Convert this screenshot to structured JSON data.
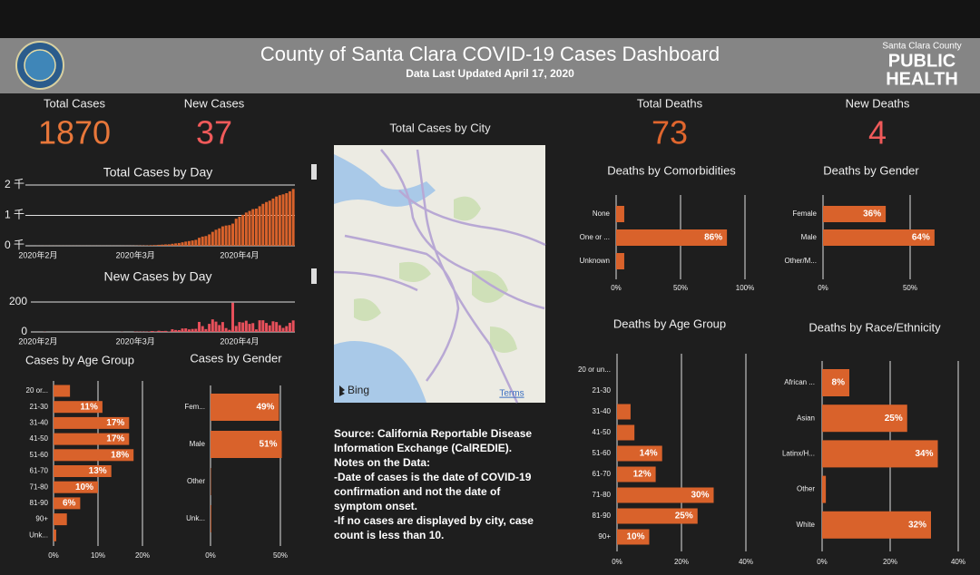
{
  "header": {
    "title": "County of Santa Clara COVID-19 Cases Dashboard",
    "subtitle": "Data Last Updated April 17, 2020",
    "logo_top": "Santa Clara County",
    "logo_line1": "PUBLIC",
    "logo_line2": "HEALTH"
  },
  "kpis": [
    {
      "label": "Total Cases",
      "value": 1870,
      "color": "#e8773a"
    },
    {
      "label": "New Cases",
      "value": 37,
      "color": "#f05a5a"
    },
    {
      "label": "Total Deaths",
      "value": 73,
      "color": "#e0662e"
    },
    {
      "label": "New Deaths",
      "value": 4,
      "color": "#f05a5a"
    }
  ],
  "map": {
    "title": "Total Cases by City",
    "attribution": "Bing",
    "terms": "Terms"
  },
  "notes": [
    "Source: California Reportable Disease Information Exchange (CalREDIE).",
    "Notes on the Data:",
    "-Date of cases is the date of COVID-19 confirmation and not the date of symptom onset.",
    "-If no cases are displayed by city, case count is less than 10."
  ],
  "chart_data": [
    {
      "type": "bar",
      "title": "Total Cases by Day",
      "color": "#d9622b",
      "categories": [
        "2020年2月",
        null,
        null,
        null,
        null,
        null,
        null,
        null,
        null,
        null,
        null,
        null,
        null,
        null,
        null,
        null,
        null,
        null,
        null,
        null,
        null,
        null,
        null,
        null,
        null,
        null,
        null,
        null,
        null,
        "2020年3月",
        null,
        null,
        null,
        null,
        null,
        null,
        null,
        null,
        null,
        null,
        null,
        null,
        null,
        null,
        null,
        null,
        null,
        null,
        null,
        null,
        null,
        null,
        null,
        null,
        null,
        null,
        null,
        null,
        null,
        null,
        "2020年4月",
        null,
        null,
        null,
        null,
        null,
        null,
        null,
        null,
        null,
        null,
        null,
        null,
        null,
        null,
        null,
        null
      ],
      "values": [
        1,
        1,
        2,
        2,
        2,
        2,
        2,
        2,
        2,
        2,
        2,
        2,
        2,
        2,
        2,
        2,
        2,
        2,
        2,
        2,
        2,
        2,
        2,
        2,
        2,
        2,
        3,
        3,
        3,
        5,
        7,
        9,
        11,
        14,
        20,
        24,
        32,
        38,
        45,
        48,
        66,
        79,
        91,
        114,
        138,
        155,
        175,
        196,
        263,
        302,
        321,
        375,
        459,
        528,
        574,
        640,
        666,
        680,
        730,
        890,
        956,
        1019,
        1094,
        1148,
        1207,
        1224,
        1302,
        1380,
        1440,
        1484,
        1555,
        1621,
        1666,
        1693,
        1732,
        1793,
        1870
      ],
      "ylim": [
        0,
        2100
      ],
      "yticks": [
        {
          "value": 0,
          "label": "0 千"
        },
        {
          "value": 1000,
          "label": "1 千"
        },
        {
          "value": 2000,
          "label": "2 千"
        }
      ],
      "grid": true
    },
    {
      "type": "bar",
      "title": "New Cases by Day",
      "color": "#e8505b",
      "categories": [
        "2020年2月",
        null,
        null,
        null,
        null,
        null,
        null,
        null,
        null,
        null,
        null,
        null,
        null,
        null,
        null,
        null,
        null,
        null,
        null,
        null,
        null,
        null,
        null,
        null,
        null,
        null,
        null,
        null,
        null,
        "2020年3月",
        null,
        null,
        null,
        null,
        null,
        null,
        null,
        null,
        null,
        null,
        null,
        null,
        null,
        null,
        null,
        null,
        null,
        null,
        null,
        null,
        null,
        null,
        null,
        null,
        null,
        null,
        null,
        null,
        null,
        null,
        "2020年4月",
        null,
        null,
        null,
        null,
        null,
        null,
        null,
        null,
        null,
        null,
        null,
        null,
        null,
        null,
        null,
        null
      ],
      "values": [
        0,
        0,
        1,
        0,
        0,
        0,
        0,
        0,
        0,
        0,
        0,
        0,
        0,
        0,
        0,
        0,
        0,
        0,
        0,
        0,
        0,
        0,
        0,
        0,
        0,
        1,
        0,
        0,
        0,
        2,
        2,
        2,
        2,
        3,
        6,
        4,
        8,
        6,
        7,
        3,
        18,
        13,
        12,
        23,
        24,
        17,
        20,
        21,
        67,
        39,
        19,
        54,
        84,
        69,
        46,
        66,
        26,
        14,
        195,
        40,
        66,
        63,
        75,
        54,
        59,
        17,
        78,
        78,
        60,
        44,
        71,
        66,
        45,
        27,
        39,
        61,
        77
      ],
      "ylim": [
        0,
        240
      ],
      "yticks": [
        0,
        200
      ],
      "grid": true
    },
    {
      "type": "hbar",
      "title": "Cases by Age Group",
      "color": "#d9622b",
      "categories": [
        "20 or...",
        "21-30",
        "31-40",
        "41-50",
        "51-60",
        "61-70",
        "71-80",
        "81-90",
        "90+",
        "Unk..."
      ],
      "values": [
        3.7,
        11,
        17,
        17,
        18,
        13,
        10,
        6,
        3,
        0.6
      ],
      "value_labels": [
        null,
        "11%",
        "17%",
        "17%",
        "18%",
        "13%",
        "10%",
        "6%",
        null,
        null
      ],
      "xlim": [
        0,
        24
      ],
      "xticks": [
        {
          "value": 0,
          "label": "0%"
        },
        {
          "value": 10,
          "label": "10%"
        },
        {
          "value": 20,
          "label": "20%"
        }
      ],
      "grid": true
    },
    {
      "type": "hbar",
      "title": "Cases by Gender",
      "color": "#d9622b",
      "categories": [
        "Fem...",
        "Male",
        "Other",
        "Unk..."
      ],
      "values": [
        49,
        51,
        0.3,
        0.5
      ],
      "value_labels": [
        "49%",
        "51%",
        null,
        null
      ],
      "xlim": [
        0,
        60
      ],
      "xticks": [
        {
          "value": 0,
          "label": "0%"
        },
        {
          "value": 50,
          "label": "50%"
        }
      ],
      "grid": true
    },
    {
      "type": "hbar",
      "title": "Deaths by Comorbidities",
      "color": "#d9622b",
      "categories": [
        "None",
        "One or ...",
        "Unknown"
      ],
      "values": [
        6.3,
        86,
        6.3
      ],
      "value_labels": [
        null,
        "86%",
        null
      ],
      "xlim": [
        0,
        100
      ],
      "xticks": [
        {
          "value": 0,
          "label": "0%"
        },
        {
          "value": 50,
          "label": "50%"
        },
        {
          "value": 100,
          "label": "100%"
        }
      ],
      "grid": true
    },
    {
      "type": "hbar",
      "title": "Deaths by Gender",
      "color": "#d9622b",
      "categories": [
        "Female",
        "Male",
        "Other/M..."
      ],
      "values": [
        36,
        64,
        0
      ],
      "value_labels": [
        "36%",
        "64%",
        null
      ],
      "xlim": [
        0,
        75
      ],
      "xticks": [
        {
          "value": 0,
          "label": "0%"
        },
        {
          "value": 50,
          "label": "50%"
        }
      ],
      "grid": true
    },
    {
      "type": "hbar",
      "title": "Deaths by Age Group",
      "color": "#d9622b",
      "categories": [
        "20 or un...",
        "21-30",
        "31-40",
        "41-50",
        "51-60",
        "61-70",
        "71-80",
        "81-90",
        "90+"
      ],
      "values": [
        0,
        0,
        4.2,
        5.4,
        14,
        12,
        30,
        25,
        10
      ],
      "value_labels": [
        null,
        null,
        null,
        null,
        "14%",
        "12%",
        "30%",
        "25%",
        "10%"
      ],
      "xlim": [
        0,
        40
      ],
      "xticks": [
        {
          "value": 0,
          "label": "0%"
        },
        {
          "value": 20,
          "label": "20%"
        },
        {
          "value": 40,
          "label": "40%"
        }
      ],
      "grid": true
    },
    {
      "type": "hbar",
      "title": "Deaths by Race/Ethnicity",
      "color": "#d9622b",
      "categories": [
        "African ...",
        "Asian",
        "Latinx/H...",
        "Other",
        "White"
      ],
      "values": [
        8,
        25,
        34,
        1.1,
        32
      ],
      "value_labels": [
        "8%",
        "25%",
        "34%",
        null,
        "32%"
      ],
      "xlim": [
        0,
        40
      ],
      "xticks": [
        {
          "value": 0,
          "label": "0%"
        },
        {
          "value": 20,
          "label": "20%"
        },
        {
          "value": 40,
          "label": "40%"
        }
      ],
      "grid": true
    }
  ]
}
